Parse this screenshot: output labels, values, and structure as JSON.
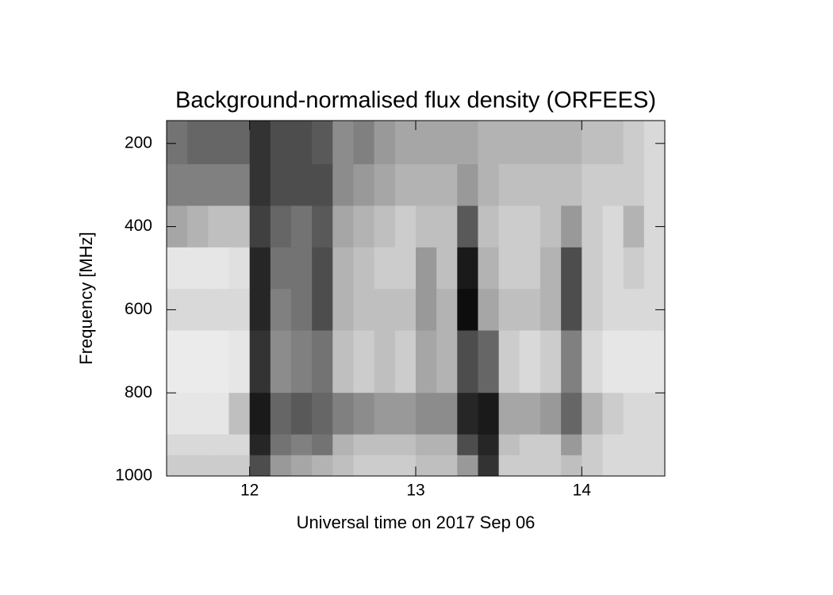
{
  "chart_data": {
    "type": "heatmap",
    "title": "Background-normalised flux density (ORFEES)",
    "xlabel": "Universal time on 2017 Sep 06",
    "ylabel": "Frequency [MHz]",
    "colormap": "gray",
    "xlim": [
      11.5,
      14.5
    ],
    "xticks": [
      12,
      13,
      14
    ],
    "ylim": [
      1000,
      145
    ],
    "yticks": [
      200,
      400,
      600,
      800,
      1000
    ],
    "x_bins": [
      11.5,
      11.625,
      11.75,
      11.875,
      12,
      12.125,
      12.25,
      12.375,
      12.5,
      12.625,
      12.75,
      12.875,
      13,
      13.125,
      13.25,
      13.375,
      13.5,
      13.625,
      13.75,
      13.875,
      14,
      14.125,
      14.25,
      14.375,
      14.5
    ],
    "y_bins": [
      145,
      250,
      350,
      450,
      550,
      650,
      800,
      900,
      950,
      1000
    ],
    "z": [
      [
        0.45,
        0.4,
        0.4,
        0.4,
        0.2,
        0.3,
        0.3,
        0.35,
        0.55,
        0.5,
        0.6,
        0.65,
        0.65,
        0.65,
        0.65,
        0.7,
        0.7,
        0.7,
        0.7,
        0.7,
        0.75,
        0.75,
        0.8,
        0.85
      ],
      [
        0.5,
        0.5,
        0.5,
        0.5,
        0.2,
        0.3,
        0.3,
        0.3,
        0.55,
        0.6,
        0.65,
        0.7,
        0.7,
        0.7,
        0.6,
        0.7,
        0.75,
        0.75,
        0.75,
        0.75,
        0.8,
        0.8,
        0.8,
        0.85
      ],
      [
        0.65,
        0.7,
        0.75,
        0.75,
        0.25,
        0.4,
        0.45,
        0.35,
        0.65,
        0.7,
        0.75,
        0.8,
        0.75,
        0.75,
        0.35,
        0.75,
        0.8,
        0.8,
        0.75,
        0.6,
        0.8,
        0.85,
        0.7,
        0.85
      ],
      [
        0.9,
        0.9,
        0.9,
        0.88,
        0.15,
        0.45,
        0.45,
        0.3,
        0.7,
        0.75,
        0.8,
        0.8,
        0.6,
        0.75,
        0.1,
        0.7,
        0.8,
        0.8,
        0.7,
        0.3,
        0.8,
        0.85,
        0.8,
        0.85
      ],
      [
        0.85,
        0.85,
        0.85,
        0.85,
        0.15,
        0.5,
        0.45,
        0.3,
        0.7,
        0.75,
        0.75,
        0.75,
        0.6,
        0.7,
        0.05,
        0.65,
        0.75,
        0.75,
        0.7,
        0.3,
        0.8,
        0.85,
        0.85,
        0.85
      ],
      [
        0.92,
        0.92,
        0.92,
        0.9,
        0.2,
        0.55,
        0.5,
        0.45,
        0.75,
        0.8,
        0.75,
        0.8,
        0.65,
        0.7,
        0.3,
        0.4,
        0.8,
        0.85,
        0.8,
        0.5,
        0.85,
        0.9,
        0.9,
        0.9
      ],
      [
        0.9,
        0.9,
        0.9,
        0.75,
        0.1,
        0.4,
        0.35,
        0.4,
        0.5,
        0.55,
        0.6,
        0.6,
        0.55,
        0.55,
        0.15,
        0.1,
        0.65,
        0.65,
        0.6,
        0.4,
        0.7,
        0.8,
        0.85,
        0.85
      ],
      [
        0.85,
        0.85,
        0.85,
        0.85,
        0.15,
        0.45,
        0.5,
        0.45,
        0.7,
        0.75,
        0.75,
        0.75,
        0.7,
        0.7,
        0.3,
        0.15,
        0.75,
        0.8,
        0.8,
        0.6,
        0.8,
        0.85,
        0.85,
        0.85
      ],
      [
        0.8,
        0.8,
        0.8,
        0.8,
        0.3,
        0.6,
        0.65,
        0.7,
        0.75,
        0.8,
        0.8,
        0.8,
        0.75,
        0.75,
        0.6,
        0.2,
        0.8,
        0.8,
        0.8,
        0.75,
        0.8,
        0.85,
        0.85,
        0.85
      ]
    ]
  }
}
